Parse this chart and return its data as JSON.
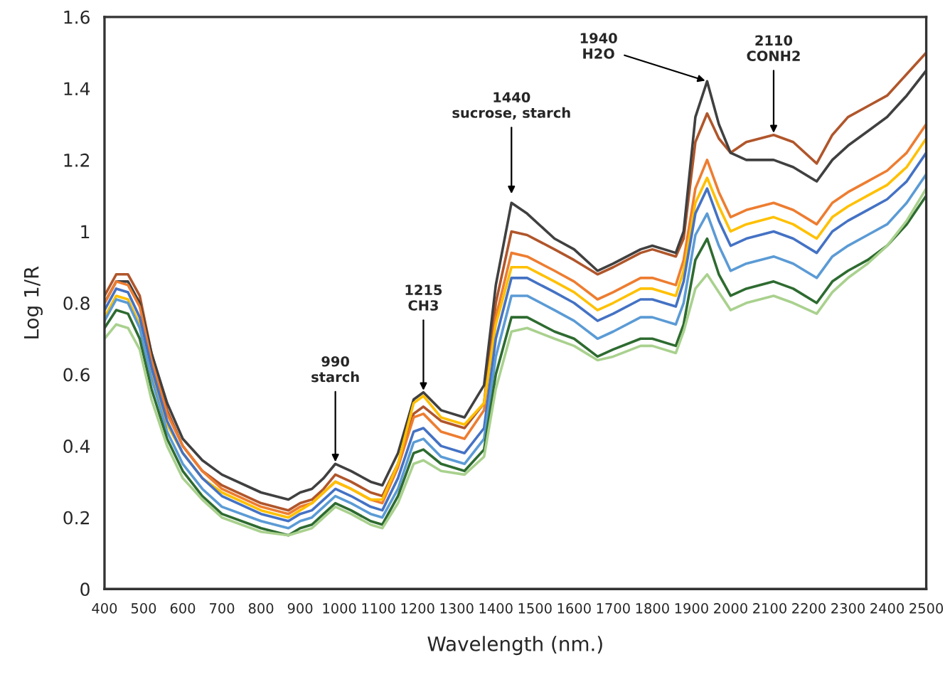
{
  "chart_data": {
    "type": "line",
    "xlabel": "Wavelength (nm.)",
    "ylabel": "Log 1/R",
    "x": [
      400,
      430,
      460,
      490,
      520,
      560,
      600,
      650,
      700,
      800,
      870,
      900,
      930,
      960,
      990,
      1030,
      1080,
      1110,
      1150,
      1190,
      1215,
      1260,
      1320,
      1370,
      1400,
      1440,
      1480,
      1550,
      1600,
      1660,
      1700,
      1770,
      1800,
      1860,
      1880,
      1910,
      1940,
      1970,
      2000,
      2040,
      2110,
      2160,
      2220,
      2260,
      2300,
      2350,
      2400,
      2450,
      2500
    ],
    "series": [
      {
        "color": "#b0562b",
        "values": [
          0.82,
          0.88,
          0.88,
          0.82,
          0.66,
          0.5,
          0.4,
          0.33,
          0.29,
          0.24,
          0.22,
          0.24,
          0.25,
          0.28,
          0.32,
          0.3,
          0.27,
          0.26,
          0.35,
          0.49,
          0.51,
          0.47,
          0.45,
          0.52,
          0.8,
          1.0,
          0.99,
          0.95,
          0.92,
          0.88,
          0.9,
          0.94,
          0.95,
          0.93,
          0.98,
          1.25,
          1.33,
          1.26,
          1.22,
          1.25,
          1.27,
          1.25,
          1.19,
          1.27,
          1.32,
          1.35,
          1.38,
          1.44,
          1.5
        ]
      },
      {
        "color": "#404040",
        "values": [
          0.8,
          0.86,
          0.86,
          0.8,
          0.66,
          0.52,
          0.42,
          0.36,
          0.32,
          0.27,
          0.25,
          0.27,
          0.28,
          0.31,
          0.35,
          0.33,
          0.3,
          0.29,
          0.38,
          0.53,
          0.55,
          0.5,
          0.48,
          0.57,
          0.85,
          1.08,
          1.05,
          0.98,
          0.95,
          0.89,
          0.91,
          0.95,
          0.96,
          0.94,
          1.0,
          1.32,
          1.42,
          1.3,
          1.22,
          1.2,
          1.2,
          1.18,
          1.14,
          1.2,
          1.24,
          1.28,
          1.32,
          1.38,
          1.45
        ]
      },
      {
        "color": "#ed7d31",
        "values": [
          0.8,
          0.86,
          0.85,
          0.79,
          0.64,
          0.49,
          0.4,
          0.33,
          0.28,
          0.23,
          0.21,
          0.23,
          0.24,
          0.27,
          0.3,
          0.28,
          0.25,
          0.24,
          0.34,
          0.48,
          0.49,
          0.44,
          0.42,
          0.5,
          0.76,
          0.94,
          0.93,
          0.89,
          0.86,
          0.81,
          0.83,
          0.87,
          0.87,
          0.85,
          0.92,
          1.12,
          1.2,
          1.11,
          1.04,
          1.06,
          1.08,
          1.06,
          1.02,
          1.08,
          1.11,
          1.14,
          1.17,
          1.22,
          1.3
        ]
      },
      {
        "color": "#ffc000",
        "values": [
          0.76,
          0.82,
          0.81,
          0.74,
          0.6,
          0.46,
          0.38,
          0.31,
          0.27,
          0.22,
          0.2,
          0.22,
          0.24,
          0.27,
          0.3,
          0.28,
          0.25,
          0.25,
          0.35,
          0.52,
          0.54,
          0.48,
          0.46,
          0.52,
          0.74,
          0.9,
          0.9,
          0.86,
          0.83,
          0.78,
          0.8,
          0.84,
          0.84,
          0.82,
          0.89,
          1.08,
          1.15,
          1.07,
          1.0,
          1.02,
          1.04,
          1.02,
          0.98,
          1.04,
          1.07,
          1.1,
          1.13,
          1.18,
          1.26
        ]
      },
      {
        "color": "#4472c4",
        "values": [
          0.78,
          0.84,
          0.83,
          0.76,
          0.62,
          0.47,
          0.38,
          0.31,
          0.26,
          0.21,
          0.19,
          0.21,
          0.22,
          0.25,
          0.28,
          0.26,
          0.23,
          0.22,
          0.31,
          0.44,
          0.45,
          0.4,
          0.38,
          0.45,
          0.7,
          0.87,
          0.87,
          0.83,
          0.8,
          0.75,
          0.77,
          0.81,
          0.81,
          0.79,
          0.86,
          1.05,
          1.12,
          1.03,
          0.96,
          0.98,
          1.0,
          0.98,
          0.94,
          1.0,
          1.03,
          1.06,
          1.09,
          1.14,
          1.22
        ]
      },
      {
        "color": "#5b9bd5",
        "values": [
          0.75,
          0.81,
          0.8,
          0.73,
          0.59,
          0.44,
          0.35,
          0.28,
          0.23,
          0.19,
          0.17,
          0.19,
          0.2,
          0.23,
          0.26,
          0.24,
          0.21,
          0.2,
          0.28,
          0.41,
          0.42,
          0.37,
          0.35,
          0.42,
          0.65,
          0.82,
          0.82,
          0.78,
          0.75,
          0.7,
          0.72,
          0.76,
          0.76,
          0.74,
          0.8,
          0.99,
          1.05,
          0.96,
          0.89,
          0.91,
          0.93,
          0.91,
          0.87,
          0.93,
          0.96,
          0.99,
          1.02,
          1.08,
          1.16
        ]
      },
      {
        "color": "#2e6b30",
        "values": [
          0.73,
          0.78,
          0.77,
          0.7,
          0.56,
          0.42,
          0.33,
          0.26,
          0.21,
          0.17,
          0.15,
          0.17,
          0.18,
          0.21,
          0.24,
          0.22,
          0.19,
          0.18,
          0.26,
          0.38,
          0.39,
          0.35,
          0.33,
          0.39,
          0.6,
          0.76,
          0.76,
          0.72,
          0.7,
          0.65,
          0.67,
          0.7,
          0.7,
          0.68,
          0.74,
          0.92,
          0.98,
          0.88,
          0.82,
          0.84,
          0.86,
          0.84,
          0.8,
          0.86,
          0.89,
          0.92,
          0.96,
          1.02,
          1.1
        ]
      },
      {
        "color": "#a9d18e",
        "values": [
          0.7,
          0.74,
          0.73,
          0.67,
          0.53,
          0.4,
          0.31,
          0.25,
          0.2,
          0.16,
          0.15,
          0.16,
          0.17,
          0.2,
          0.23,
          0.21,
          0.18,
          0.17,
          0.24,
          0.35,
          0.36,
          0.33,
          0.32,
          0.37,
          0.56,
          0.72,
          0.73,
          0.7,
          0.68,
          0.64,
          0.65,
          0.68,
          0.68,
          0.66,
          0.72,
          0.84,
          0.88,
          0.83,
          0.78,
          0.8,
          0.82,
          0.8,
          0.77,
          0.83,
          0.87,
          0.91,
          0.96,
          1.03,
          1.12
        ]
      }
    ],
    "xlim": [
      400,
      2500
    ],
    "xticks": [
      400,
      500,
      600,
      700,
      800,
      900,
      1000,
      1100,
      1200,
      1300,
      1400,
      1500,
      1600,
      1700,
      1800,
      1900,
      2000,
      2100,
      2200,
      2300,
      2400,
      2500
    ],
    "ylim": [
      0,
      1.6
    ],
    "yticks": [
      0,
      0.2,
      0.4,
      0.6,
      0.8,
      1,
      1.2,
      1.4,
      1.6
    ],
    "grid": false,
    "legend": false,
    "marker": "none",
    "line_style": "solid",
    "annotations": [
      {
        "text": "990\nstarch",
        "x": 990,
        "y": 0.35
      },
      {
        "text": "1215\nCH3",
        "x": 1215,
        "y": 0.55
      },
      {
        "text": "1440\nsucrose, starch",
        "x": 1440,
        "y": 1.1
      },
      {
        "text": "1940\nH2O",
        "x": 1940,
        "y": 1.42
      },
      {
        "text": "2110\nCONH2",
        "x": 2110,
        "y": 1.27
      }
    ]
  }
}
